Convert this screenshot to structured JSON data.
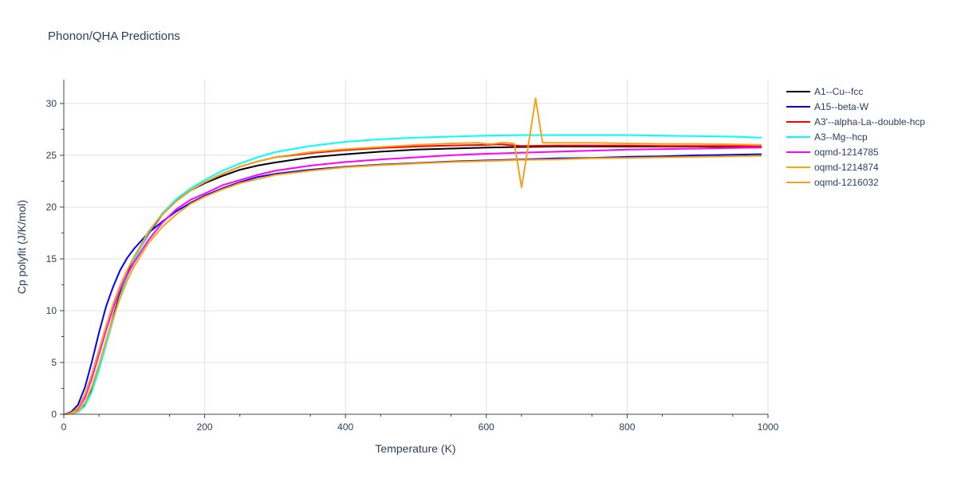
{
  "chart_data": {
    "type": "line",
    "title": "Phonon/QHA Predictions",
    "xlabel": "Temperature (K)",
    "ylabel": "Cp polyfit (J/K/mol)",
    "xlim": [
      0,
      1000
    ],
    "ylim": [
      0,
      32.3
    ],
    "xticks": [
      0,
      200,
      400,
      600,
      800,
      1000
    ],
    "xtick_labels": [
      "0",
      "200",
      "400",
      "600",
      "800",
      "1000"
    ],
    "yticks": [
      0,
      5,
      10,
      15,
      20,
      25,
      30
    ],
    "ytick_labels": [
      "0",
      "5",
      "10",
      "15",
      "20",
      "25",
      "30"
    ],
    "grid": true,
    "legend_position": "right",
    "series": [
      {
        "name": "A1--Cu--fcc",
        "color": "#000000",
        "x": [
          0,
          10,
          20,
          30,
          40,
          50,
          60,
          70,
          80,
          90,
          100,
          120,
          140,
          160,
          180,
          200,
          225,
          250,
          275,
          300,
          350,
          400,
          450,
          500,
          550,
          600,
          650,
          700,
          750,
          800,
          850,
          900,
          950,
          990
        ],
        "y": [
          0,
          0.05,
          0.3,
          1.0,
          2.5,
          4.6,
          7.0,
          9.4,
          11.6,
          13.5,
          15.0,
          17.4,
          19.3,
          20.6,
          21.6,
          22.3,
          23.0,
          23.6,
          24.0,
          24.3,
          24.8,
          25.1,
          25.35,
          25.55,
          25.65,
          25.75,
          25.8,
          25.85,
          25.85,
          25.85,
          25.85,
          25.85,
          25.8,
          25.8
        ]
      },
      {
        "name": "A15--beta-W",
        "color": "#0000ff",
        "x": [
          0,
          10,
          20,
          30,
          40,
          50,
          60,
          70,
          80,
          90,
          100,
          120,
          140,
          160,
          180,
          200,
          225,
          250,
          275,
          300,
          350,
          400,
          450,
          500,
          550,
          600,
          650,
          700,
          750,
          800,
          850,
          900,
          950,
          990
        ],
        "y": [
          0,
          0.2,
          0.9,
          2.6,
          5.1,
          7.9,
          10.4,
          12.3,
          13.9,
          15.1,
          16.0,
          17.5,
          18.6,
          19.6,
          20.4,
          21.1,
          21.8,
          22.4,
          22.9,
          23.2,
          23.6,
          23.9,
          24.1,
          24.25,
          24.4,
          24.5,
          24.6,
          24.7,
          24.75,
          24.85,
          24.9,
          25.0,
          25.05,
          25.1
        ]
      },
      {
        "name": "A3'--alpha-La--double-hcp",
        "color": "#ff0000",
        "x": [
          0,
          10,
          20,
          30,
          40,
          50,
          60,
          70,
          80,
          90,
          100,
          120,
          140,
          160,
          180,
          200,
          225,
          250,
          275,
          300,
          350,
          400,
          450,
          500,
          550,
          600,
          620,
          650,
          700,
          750,
          800,
          850,
          900,
          950,
          990
        ],
        "y": [
          0,
          0.1,
          0.6,
          1.9,
          3.9,
          6.2,
          8.5,
          10.6,
          12.4,
          13.9,
          15.2,
          17.6,
          19.3,
          20.6,
          21.6,
          22.4,
          23.2,
          23.9,
          24.4,
          24.8,
          25.2,
          25.5,
          25.7,
          25.85,
          25.95,
          26.0,
          26.05,
          25.9,
          25.95,
          25.95,
          25.95,
          25.9,
          25.9,
          25.9,
          25.85
        ]
      },
      {
        "name": "A3--Mg--hcp",
        "color": "#00ffff",
        "x": [
          0,
          10,
          20,
          30,
          40,
          50,
          60,
          70,
          80,
          90,
          100,
          120,
          140,
          160,
          180,
          200,
          225,
          250,
          275,
          300,
          350,
          400,
          450,
          500,
          550,
          600,
          650,
          700,
          750,
          800,
          850,
          900,
          950,
          990
        ],
        "y": [
          0,
          0.05,
          0.2,
          0.8,
          2.2,
          4.3,
          6.7,
          9.1,
          11.4,
          13.3,
          14.9,
          17.5,
          19.4,
          20.8,
          21.8,
          22.6,
          23.5,
          24.2,
          24.8,
          25.3,
          25.9,
          26.3,
          26.55,
          26.7,
          26.8,
          26.9,
          26.95,
          26.95,
          26.95,
          26.95,
          26.9,
          26.85,
          26.8,
          26.7
        ]
      },
      {
        "name": "oqmd-1214785",
        "color": "#ff00ff",
        "x": [
          0,
          10,
          20,
          30,
          40,
          50,
          60,
          70,
          80,
          90,
          100,
          120,
          140,
          160,
          180,
          200,
          225,
          250,
          275,
          300,
          350,
          400,
          450,
          500,
          550,
          600,
          650,
          700,
          750,
          800,
          850,
          900,
          950,
          990
        ],
        "y": [
          0,
          0.1,
          0.5,
          1.6,
          3.5,
          5.8,
          8.1,
          10.2,
          12.0,
          13.5,
          14.7,
          16.8,
          18.5,
          19.8,
          20.7,
          21.3,
          22.1,
          22.6,
          23.1,
          23.5,
          24.0,
          24.35,
          24.6,
          24.8,
          25.0,
          25.15,
          25.25,
          25.35,
          25.45,
          25.55,
          25.6,
          25.65,
          25.7,
          25.75
        ]
      },
      {
        "name": "oqmd-1214874",
        "color": "#ffa500",
        "x": [
          0,
          10,
          20,
          30,
          40,
          50,
          60,
          70,
          80,
          90,
          100,
          120,
          140,
          160,
          180,
          200,
          225,
          250,
          275,
          300,
          350,
          400,
          450,
          500,
          550,
          600,
          650,
          700,
          750,
          800,
          850,
          900,
          950,
          990
        ],
        "y": [
          0,
          0.05,
          0.3,
          1.1,
          2.7,
          4.8,
          7.1,
          9.3,
          11.2,
          12.9,
          14.3,
          16.5,
          18.1,
          19.3,
          20.3,
          21.0,
          21.7,
          22.3,
          22.7,
          23.1,
          23.5,
          23.85,
          24.05,
          24.2,
          24.35,
          24.45,
          24.55,
          24.6,
          24.7,
          24.75,
          24.8,
          24.85,
          24.9,
          24.95
        ]
      },
      {
        "name": "oqmd-1216032",
        "color": "#f4a11d",
        "x": [
          0,
          10,
          20,
          30,
          40,
          50,
          60,
          70,
          80,
          90,
          100,
          120,
          140,
          160,
          180,
          200,
          225,
          250,
          275,
          300,
          350,
          400,
          450,
          500,
          550,
          590,
          600,
          610,
          620,
          630,
          640,
          650,
          660,
          670,
          680,
          700,
          750,
          800,
          850,
          900,
          950,
          990
        ],
        "y": [
          0,
          0.1,
          0.6,
          1.9,
          3.9,
          6.2,
          8.5,
          10.6,
          12.4,
          13.9,
          15.2,
          17.6,
          19.3,
          20.6,
          21.6,
          22.4,
          23.2,
          23.9,
          24.4,
          24.8,
          25.3,
          25.6,
          25.8,
          26.0,
          26.15,
          26.2,
          26.1,
          26.1,
          26.2,
          26.2,
          26.1,
          21.9,
          26.1,
          30.5,
          26.2,
          26.2,
          26.2,
          26.15,
          26.1,
          26.1,
          26.05,
          26.0
        ]
      }
    ]
  }
}
